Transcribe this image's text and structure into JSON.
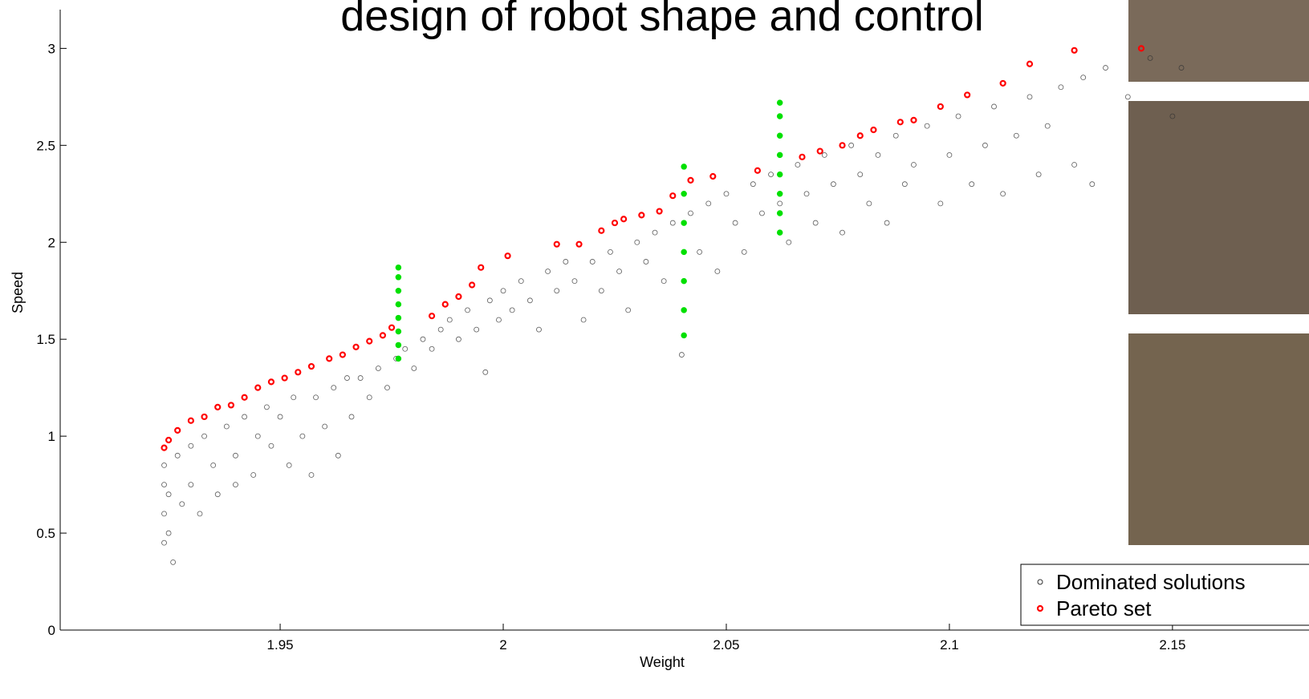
{
  "chart_data": {
    "type": "scatter",
    "title": "design of robot shape and control",
    "x_label": "Weight",
    "y_label": "Speed",
    "xlim": [
      1.9007,
      2.1806
    ],
    "ylim": [
      0,
      3.2
    ],
    "xticks": [
      1.95,
      2,
      2.05,
      2.1,
      2.15
    ],
    "yticks": [
      0,
      0.5,
      1,
      1.5,
      2,
      2.5,
      3
    ],
    "legend": "lower right",
    "series": [
      {
        "name": "Dominated solutions",
        "color": "#333333",
        "x": [
          1.924,
          1.924,
          1.924,
          1.924,
          1.925,
          1.925,
          1.926,
          1.927,
          1.928,
          1.93,
          1.93,
          1.932,
          1.933,
          1.935,
          1.936,
          1.938,
          1.94,
          1.94,
          1.942,
          1.944,
          1.945,
          1.947,
          1.948,
          1.95,
          1.952,
          1.953,
          1.955,
          1.957,
          1.958,
          1.96,
          1.962,
          1.963,
          1.965,
          1.966,
          1.968,
          1.97,
          1.972,
          1.974,
          1.976,
          1.978,
          1.98,
          1.982,
          1.984,
          1.986,
          1.988,
          1.99,
          1.992,
          1.994,
          1.996,
          1.997,
          1.999,
          2.0,
          2.002,
          2.004,
          2.006,
          2.008,
          2.01,
          2.012,
          2.014,
          2.016,
          2.018,
          2.02,
          2.022,
          2.024,
          2.026,
          2.028,
          2.03,
          2.032,
          2.034,
          2.036,
          2.038,
          2.04,
          2.042,
          2.044,
          2.046,
          2.048,
          2.05,
          2.052,
          2.054,
          2.056,
          2.058,
          2.06,
          2.062,
          2.064,
          2.066,
          2.068,
          2.07,
          2.072,
          2.074,
          2.076,
          2.078,
          2.08,
          2.082,
          2.084,
          2.086,
          2.088,
          2.09,
          2.092,
          2.095,
          2.098,
          2.1,
          2.102,
          2.105,
          2.108,
          2.11,
          2.112,
          2.115,
          2.118,
          2.12,
          2.122,
          2.125,
          2.128,
          2.13,
          2.132,
          2.135,
          2.14,
          2.145,
          2.15,
          2.152
        ],
        "values": [
          0.45,
          0.6,
          0.75,
          0.85,
          0.5,
          0.7,
          0.35,
          0.9,
          0.65,
          0.95,
          0.75,
          0.6,
          1.0,
          0.85,
          0.7,
          1.05,
          0.9,
          0.75,
          1.1,
          0.8,
          1.0,
          1.15,
          0.95,
          1.1,
          0.85,
          1.2,
          1.0,
          0.8,
          1.2,
          1.05,
          1.25,
          0.9,
          1.3,
          1.1,
          1.3,
          1.2,
          1.35,
          1.25,
          1.4,
          1.45,
          1.35,
          1.5,
          1.45,
          1.55,
          1.6,
          1.5,
          1.65,
          1.55,
          1.33,
          1.7,
          1.6,
          1.75,
          1.65,
          1.8,
          1.7,
          1.55,
          1.85,
          1.75,
          1.9,
          1.8,
          1.6,
          1.9,
          1.75,
          1.95,
          1.85,
          1.65,
          2.0,
          1.9,
          2.05,
          1.8,
          2.1,
          1.42,
          2.15,
          1.95,
          2.2,
          1.85,
          2.25,
          2.1,
          1.95,
          2.3,
          2.15,
          2.35,
          2.2,
          2.0,
          2.4,
          2.25,
          2.1,
          2.45,
          2.3,
          2.05,
          2.5,
          2.35,
          2.2,
          2.45,
          2.1,
          2.55,
          2.3,
          2.4,
          2.6,
          2.2,
          2.45,
          2.65,
          2.3,
          2.5,
          2.7,
          2.25,
          2.55,
          2.75,
          2.35,
          2.6,
          2.8,
          2.4,
          2.85,
          2.3,
          2.9,
          2.75,
          2.95,
          2.65,
          2.9
        ]
      },
      {
        "name": "Pareto set",
        "color": "#ff0000",
        "x": [
          1.924,
          1.925,
          1.927,
          1.93,
          1.933,
          1.936,
          1.939,
          1.942,
          1.945,
          1.948,
          1.951,
          1.954,
          1.957,
          1.961,
          1.964,
          1.967,
          1.97,
          1.973,
          1.975,
          1.984,
          1.987,
          1.99,
          1.993,
          1.995,
          2.001,
          2.012,
          2.017,
          2.022,
          2.025,
          2.027,
          2.031,
          2.035,
          2.038,
          2.042,
          2.047,
          2.057,
          2.067,
          2.071,
          2.076,
          2.08,
          2.083,
          2.089,
          2.092,
          2.098,
          2.104,
          2.112,
          2.118,
          2.128,
          2.143
        ],
        "values": [
          0.94,
          0.98,
          1.03,
          1.08,
          1.1,
          1.15,
          1.16,
          1.2,
          1.25,
          1.28,
          1.3,
          1.33,
          1.36,
          1.4,
          1.42,
          1.46,
          1.49,
          1.52,
          1.56,
          1.62,
          1.68,
          1.72,
          1.78,
          1.87,
          1.93,
          1.99,
          1.99,
          2.06,
          2.1,
          2.12,
          2.14,
          2.16,
          2.24,
          2.32,
          2.34,
          2.37,
          2.44,
          2.47,
          2.5,
          2.55,
          2.58,
          2.62,
          2.63,
          2.7,
          2.76,
          2.82,
          2.92,
          2.99,
          3.0
        ]
      },
      {
        "color": "#00e000",
        "x": [
          1.9765,
          1.9765,
          1.9765,
          1.9765,
          1.9765,
          1.9765,
          1.9765,
          1.9765,
          2.0405,
          2.0405,
          2.0405,
          2.0405,
          2.0405,
          2.0405,
          2.0405,
          2.062,
          2.062,
          2.062,
          2.062,
          2.062,
          2.062,
          2.062,
          2.062
        ],
        "values": [
          1.4,
          1.47,
          1.54,
          1.61,
          1.68,
          1.75,
          1.82,
          1.87,
          1.52,
          1.65,
          1.8,
          1.95,
          2.1,
          2.25,
          2.39,
          2.05,
          2.15,
          2.25,
          2.35,
          2.45,
          2.55,
          2.65,
          2.72
        ]
      }
    ]
  }
}
